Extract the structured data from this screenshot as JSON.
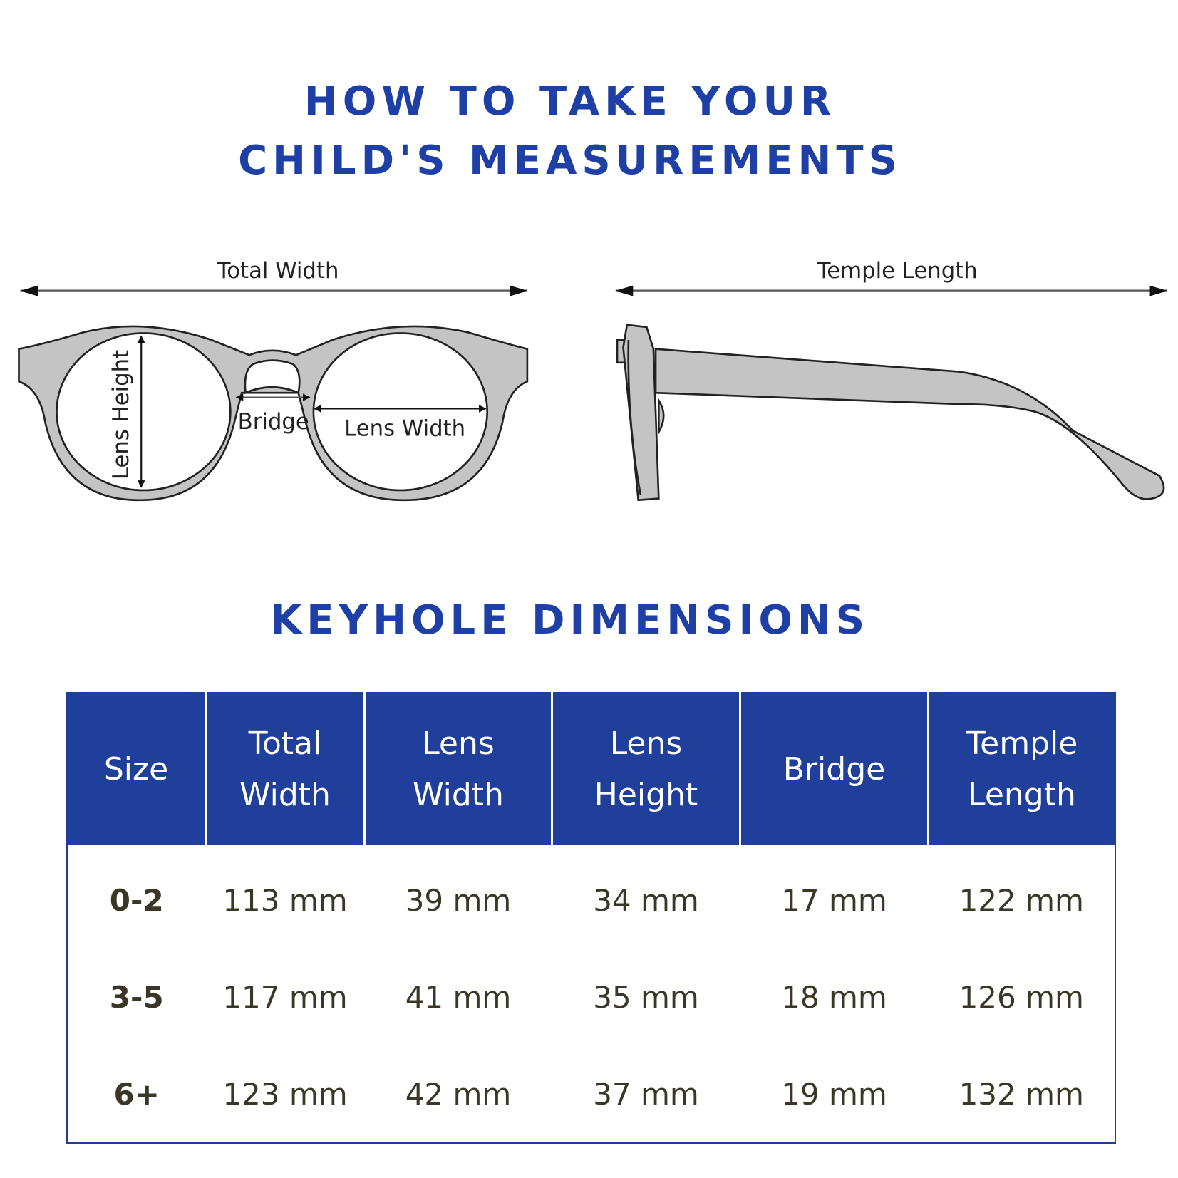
{
  "header": {
    "title_line1": "HOW TO TAKE YOUR",
    "title_line2": "CHILD'S MEASUREMENTS"
  },
  "diagram": {
    "front_view": {
      "total_width_label": "Total Width",
      "lens_height_label": "Lens Height",
      "bridge_label": "Bridge",
      "lens_width_label": "Lens Width"
    },
    "side_view": {
      "temple_length_label": "Temple Length"
    },
    "frame_color": "#c4c4c4"
  },
  "section": {
    "title": "KEYHOLE DIMENSIONS"
  },
  "table": {
    "header_color": "#1f3f9a",
    "columns": [
      [
        "Size"
      ],
      [
        "Total",
        "Width"
      ],
      [
        "Lens",
        "Width"
      ],
      [
        "Lens",
        "Height"
      ],
      [
        "Bridge"
      ],
      [
        "Temple",
        "Length"
      ]
    ],
    "rows": [
      [
        "0-2",
        "113 mm",
        "39 mm",
        "34 mm",
        "17 mm",
        "122 mm"
      ],
      [
        "3-5",
        "117 mm",
        "41 mm",
        "35 mm",
        "18 mm",
        "126 mm"
      ],
      [
        "6+",
        "123 mm",
        "42 mm",
        "37 mm",
        "19 mm",
        "132 mm"
      ]
    ]
  }
}
